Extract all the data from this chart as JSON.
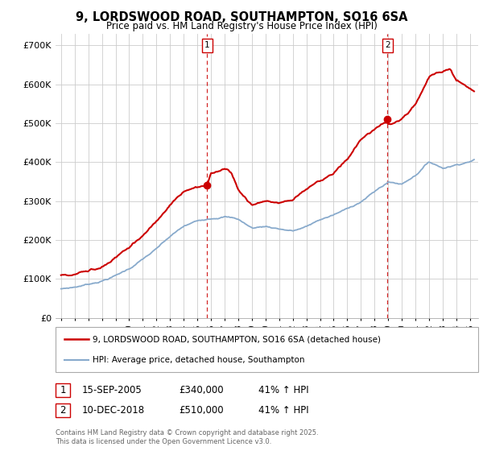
{
  "title": "9, LORDSWOOD ROAD, SOUTHAMPTON, SO16 6SA",
  "subtitle": "Price paid vs. HM Land Registry's House Price Index (HPI)",
  "ylabel_ticks": [
    "£0",
    "£100K",
    "£200K",
    "£300K",
    "£400K",
    "£500K",
    "£600K",
    "£700K"
  ],
  "ytick_values": [
    0,
    100000,
    200000,
    300000,
    400000,
    500000,
    600000,
    700000
  ],
  "ylim": [
    0,
    730000
  ],
  "xlim_start": 1994.6,
  "xlim_end": 2025.6,
  "marker1_x": 2005.71,
  "marker1_y": 340000,
  "marker2_x": 2018.94,
  "marker2_y": 510000,
  "annotation1_date": "15-SEP-2005",
  "annotation1_price": "£340,000",
  "annotation1_hpi": "41% ↑ HPI",
  "annotation2_date": "10-DEC-2018",
  "annotation2_price": "£510,000",
  "annotation2_hpi": "41% ↑ HPI",
  "house_line_color": "#cc0000",
  "hpi_line_color": "#88aacc",
  "vline_color": "#cc0000",
  "grid_color": "#cccccc",
  "background_color": "#ffffff",
  "legend_house": "9, LORDSWOOD ROAD, SOUTHAMPTON, SO16 6SA (detached house)",
  "legend_hpi": "HPI: Average price, detached house, Southampton",
  "footer": "Contains HM Land Registry data © Crown copyright and database right 2025.\nThis data is licensed under the Open Government Licence v3.0."
}
